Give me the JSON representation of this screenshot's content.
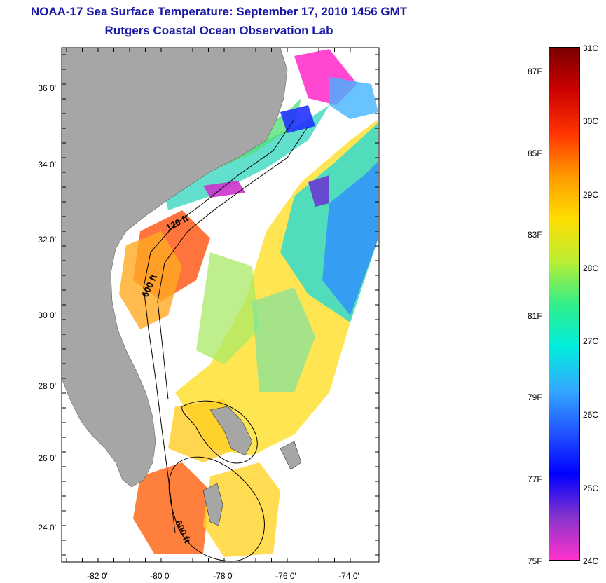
{
  "title": "NOAA-17 Sea Surface Temperature:  September 17, 2010 1456 GMT",
  "subtitle": "Rutgers Coastal Ocean Observation Lab",
  "map": {
    "lat_ticks": [
      "24 0'",
      "26 0'",
      "28 0'",
      "30 0'",
      "32 0'",
      "34 0'",
      "36 0'"
    ],
    "lon_ticks": [
      "-82 0'",
      "-80 0'",
      "-78 0'",
      "-76 0'",
      "-74 0'"
    ],
    "contour_labels": [
      "120 ft",
      "600 ft",
      "600 ft"
    ],
    "colors": {
      "land": "#a6a6a6",
      "no_data": "#ffffff",
      "contour": "#000000"
    }
  },
  "colorbar": {
    "celsius_labels": [
      "31C",
      "30C",
      "29C",
      "28C",
      "27C",
      "26C",
      "25C",
      "24C"
    ],
    "fahrenheit_labels": [
      "87F",
      "85F",
      "83F",
      "81F",
      "79F",
      "77F",
      "75F"
    ],
    "range_c": [
      24,
      31
    ],
    "stops": [
      "#7a0000",
      "#cc0000",
      "#ff3300",
      "#ff9900",
      "#ffdd00",
      "#bbee33",
      "#33ee88",
      "#00eedd",
      "#33aaff",
      "#2255ff",
      "#0000ff",
      "#8833cc",
      "#ff33cc"
    ]
  }
}
